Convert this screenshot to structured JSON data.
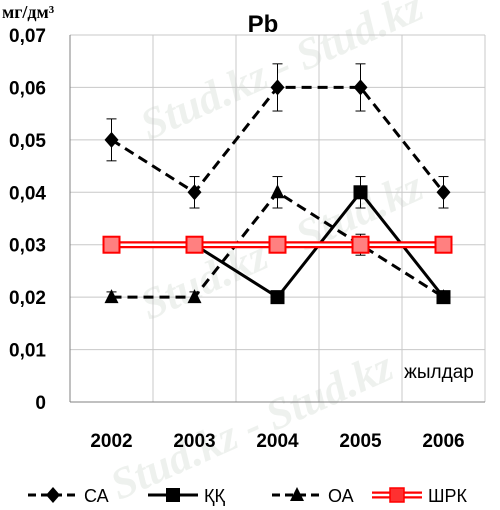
{
  "watermark": "Stud.kz - Stud.kz",
  "chart_data": {
    "type": "line",
    "title": "Pb",
    "ylabel": "мг/дм³",
    "xlabel": "жылдар",
    "categories": [
      "2002",
      "2003",
      "2004",
      "2005",
      "2006"
    ],
    "ylim": [
      0,
      0.07
    ],
    "yticks": [
      "0",
      "0,01",
      "0,02",
      "0,03",
      "0,04",
      "0,05",
      "0,06",
      "0,07"
    ],
    "grid": true,
    "legend_position": "bottom",
    "series": [
      {
        "name": "СА",
        "values": [
          0.05,
          0.04,
          0.06,
          0.06,
          0.04
        ],
        "error": [
          0.004,
          0.003,
          0.0045,
          0.0045,
          0.003
        ],
        "color": "#000000",
        "style": "dashed",
        "marker": "diamond"
      },
      {
        "name": "ҚҚ",
        "values": [
          0.03,
          0.03,
          0.02,
          0.04,
          0.02
        ],
        "error": [
          0,
          0,
          0,
          0.003,
          0
        ],
        "color": "#000000",
        "style": "solid",
        "marker": "square"
      },
      {
        "name": "ОА",
        "values": [
          0.02,
          0.02,
          0.04,
          0.03,
          0.02
        ],
        "error": [
          0.001,
          0.001,
          0.003,
          0.002,
          0.001
        ],
        "color": "#000000",
        "style": "dashed",
        "marker": "triangle"
      },
      {
        "name": "ШРК",
        "values": [
          0.03,
          0.03,
          0.03,
          0.03,
          0.03
        ],
        "error": [
          0,
          0,
          0,
          0,
          0
        ],
        "color": "#ff0000",
        "style": "double",
        "marker": "square"
      }
    ]
  }
}
